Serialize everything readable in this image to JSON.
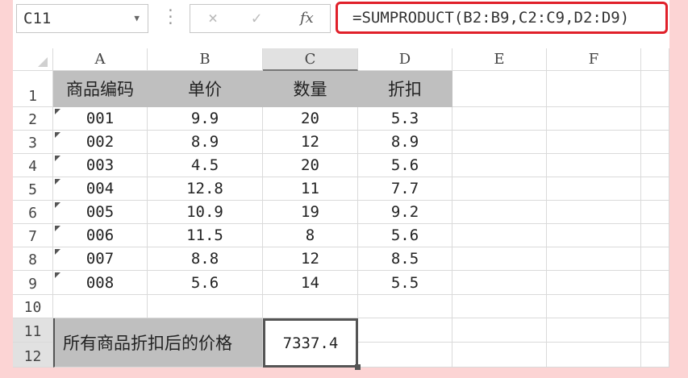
{
  "formula_bar": {
    "name_box": "C11",
    "cancel_icon": "×",
    "enter_icon": "✓",
    "fx_label": "fx",
    "formula": "=SUMPRODUCT(B2:B9,C2:C9,D2:D9)",
    "highlight_color": "#e0202a"
  },
  "columns": [
    "A",
    "B",
    "C",
    "D",
    "E",
    "F"
  ],
  "selected_column": "C",
  "row_numbers": [
    "1",
    "2",
    "3",
    "4",
    "5",
    "6",
    "7",
    "8",
    "9",
    "10",
    "11",
    "12"
  ],
  "header": [
    "商品编码",
    "单价",
    "数量",
    "折扣"
  ],
  "rows": [
    [
      "001",
      "9.9",
      "20",
      "5.3"
    ],
    [
      "002",
      "8.9",
      "12",
      "8.9"
    ],
    [
      "003",
      "4.5",
      "20",
      "5.6"
    ],
    [
      "004",
      "12.8",
      "11",
      "7.7"
    ],
    [
      "005",
      "10.9",
      "19",
      "9.2"
    ],
    [
      "006",
      "11.5",
      "8",
      "5.6"
    ],
    [
      "007",
      "8.8",
      "12",
      "8.5"
    ],
    [
      "008",
      "5.6",
      "14",
      "5.5"
    ]
  ],
  "summary": {
    "label": "所有商品折扣后的价格",
    "value": "7337.4"
  },
  "colors": {
    "header_fill": "#bfbfbf",
    "background": "#fcd4d4"
  }
}
